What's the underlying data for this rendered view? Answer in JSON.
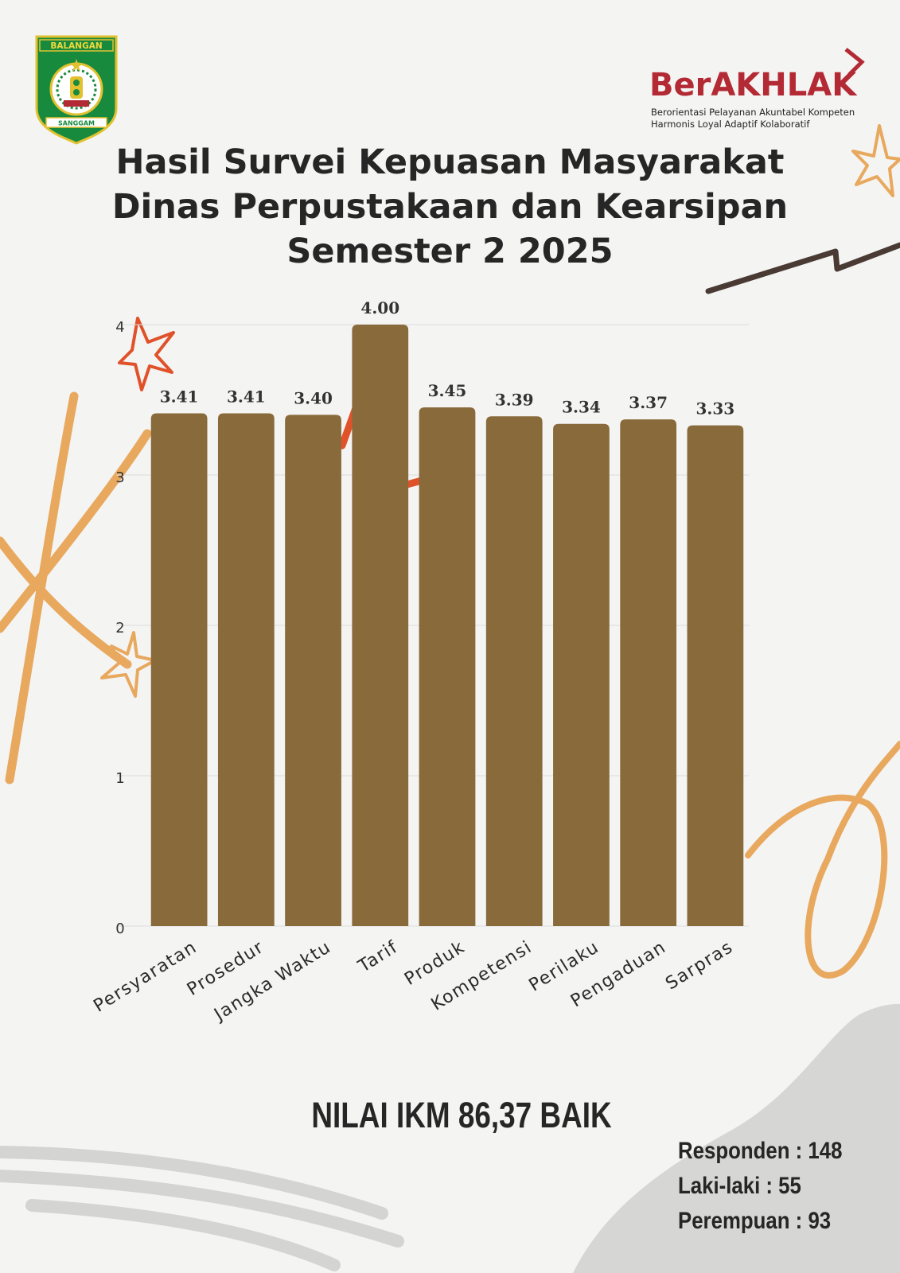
{
  "header": {
    "logo_left": {
      "top_text": "BALANGAN",
      "bottom_text": "SANGGAM"
    },
    "logo_right": {
      "brand": "BerAKHLAK",
      "line1": "Berorientasi Pelayanan Akuntabel Kompeten",
      "line2": "Harmonis Loyal Adaptif Kolaboratif"
    },
    "title_line1": "Hasil Survei Kepuasan Masyarakat",
    "title_line2": "Dinas Perpustakaan dan Kearsipan",
    "title_line3": "Semester 2 2025"
  },
  "chart_data": {
    "type": "bar",
    "categories": [
      "Persyaratan",
      "Prosedur",
      "Jangka Waktu",
      "Tarif",
      "Produk",
      "Kompetensi",
      "Perilaku",
      "Pengaduan",
      "Sarpras"
    ],
    "values": [
      3.41,
      3.41,
      3.4,
      4.0,
      3.45,
      3.39,
      3.34,
      3.37,
      3.33
    ],
    "value_labels": [
      "3.41",
      "3.41",
      "3.40",
      "4.00",
      "3.45",
      "3.39",
      "3.34",
      "3.37",
      "3.33"
    ],
    "ylim": [
      0,
      4
    ],
    "yticks": [
      "0",
      "1",
      "2",
      "3",
      "4"
    ],
    "grid": true,
    "bar_color": "#896a3b"
  },
  "summary": {
    "ikm": "NILAI IKM 86,37 BAIK",
    "respondents": "Responden : 148",
    "male": "Laki-laki : 55",
    "female": "Perempuan : 93"
  },
  "colors": {
    "background": "#f4f4f3",
    "bar": "#896a3b",
    "brand_red": "#b32a34",
    "decor_orange": "#e8a85e",
    "decor_red": "#e0522a",
    "decor_brown": "#4a3a34",
    "text": "#262626"
  }
}
